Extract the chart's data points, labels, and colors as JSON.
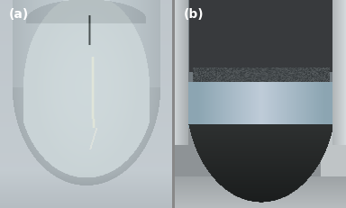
{
  "figsize": [
    3.84,
    2.32
  ],
  "dpi": 100,
  "label_a": "(a)",
  "label_b": "(b)",
  "label_color": "white",
  "label_fontsize": 10,
  "background_color": "#888888",
  "panel_a": {
    "bg_top": "#c8cdd0",
    "bg_main": "#b8bfc4",
    "vial_main": "#c0c8cc",
    "vial_light": "#d0d8dc",
    "vial_edge": "#a8b0b4",
    "bottom_color": "#b0b8bc",
    "streak_color": "#e8eef0",
    "dark_spot": "#404848"
  },
  "panel_b": {
    "bg_top": "#909498",
    "bg_mid": "#808488",
    "upper_dark": "#383c3c",
    "bubble_zone": "#303838",
    "blue_layer": "#7a9aaa",
    "blue_light": "#a0c0cc",
    "dark_bottom": "#181c1c",
    "very_dark": "#101414",
    "glass_left": "#b0bcc0",
    "glass_right": "#c8d0d4"
  }
}
